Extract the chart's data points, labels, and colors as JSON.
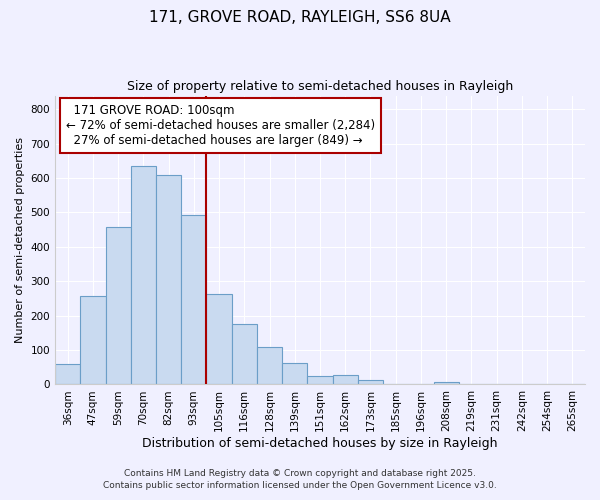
{
  "title1": "171, GROVE ROAD, RAYLEIGH, SS6 8UA",
  "title2": "Size of property relative to semi-detached houses in Rayleigh",
  "xlabel": "Distribution of semi-detached houses by size in Rayleigh",
  "ylabel": "Number of semi-detached properties",
  "bin_labels": [
    "36sqm",
    "47sqm",
    "59sqm",
    "70sqm",
    "82sqm",
    "93sqm",
    "105sqm",
    "116sqm",
    "128sqm",
    "139sqm",
    "151sqm",
    "162sqm",
    "173sqm",
    "185sqm",
    "196sqm",
    "208sqm",
    "219sqm",
    "231sqm",
    "242sqm",
    "254sqm",
    "265sqm"
  ],
  "bin_values": [
    60,
    258,
    458,
    635,
    610,
    492,
    262,
    175,
    110,
    63,
    25,
    28,
    12,
    0,
    0,
    8,
    0,
    0,
    0,
    0,
    0
  ],
  "bar_color": "#c9daf0",
  "bar_edge_color": "#6b9ec8",
  "vline_color": "#aa0000",
  "box_edge_color": "#aa0000",
  "background_color": "#f0f0ff",
  "grid_color": "#ffffff",
  "annotation_fontsize": 8.5,
  "title1_fontsize": 11,
  "title2_fontsize": 9,
  "ylabel_fontsize": 8,
  "xlabel_fontsize": 9,
  "tick_fontsize": 7.5,
  "footer1": "Contains HM Land Registry data © Crown copyright and database right 2025.",
  "footer2": "Contains public sector information licensed under the Open Government Licence v3.0.",
  "footer_fontsize": 6.5,
  "ylim": [
    0,
    840
  ],
  "property_label": "171 GROVE ROAD: 100sqm",
  "pct_smaller": 72,
  "count_smaller": "2,284",
  "pct_larger": 27,
  "count_larger": "849",
  "vline_x": 5.5
}
